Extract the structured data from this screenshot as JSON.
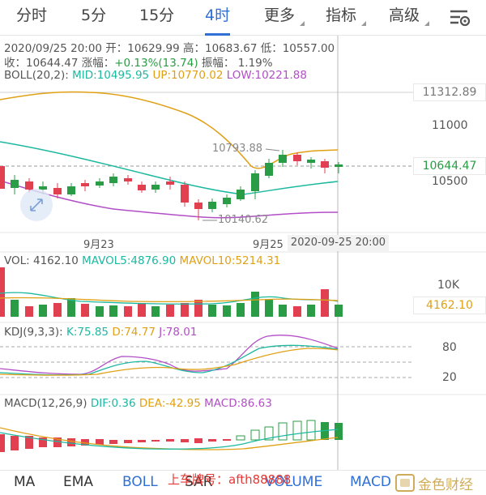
{
  "tabs": [
    {
      "label": "分时",
      "dropdown": false,
      "active": false
    },
    {
      "label": "5分",
      "dropdown": false,
      "active": false
    },
    {
      "label": "15分",
      "dropdown": false,
      "active": false
    },
    {
      "label": "4时",
      "dropdown": false,
      "active": true
    },
    {
      "label": "更多",
      "dropdown": true,
      "active": false
    },
    {
      "label": "指标",
      "dropdown": true,
      "active": false
    },
    {
      "label": "高级",
      "dropdown": true,
      "active": false
    }
  ],
  "settings_icon": "chart-settings-icon",
  "info": {
    "line1": "2020/09/25 20:00 开：10629.99 高：10683.67 低：10557.00",
    "line2_prefix": "收：10644.47 涨幅：",
    "line2_change": "+0.13%(13.74)",
    "line2_suffix": " 振幅： 1.19%"
  },
  "boll": {
    "name": "BOLL(20,2):",
    "mid": "MID:10495.95",
    "up": "UP:10770.02",
    "low": "LOW:10221.88"
  },
  "price_axis": {
    "top": "11312.89",
    "tick1": "11000",
    "current": "10644.47",
    "tick2": "10500"
  },
  "annotations": {
    "high": "10793.88",
    "low": "10140.62"
  },
  "x_labels": [
    "9月23",
    "9月25"
  ],
  "crosshair_time": "2020-09-25 20:00",
  "vol": {
    "name": "VOL: 4162.10",
    "mavol5": "MAVOL5:4876.90",
    "mavol10": "MAVOL10:5214.31",
    "tick": "10K",
    "current": "4162.10"
  },
  "kdj": {
    "name": "KDJ(9,3,3):",
    "k": "K:75.85",
    "d": "D:74.77",
    "j": "J:78.01",
    "tick_high": "80",
    "tick_low": "20"
  },
  "macd": {
    "name": "MACD(12,26,9)",
    "dif": "DIF:0.36",
    "dea": "DEA:-42.95",
    "macd": "MACD:86.63"
  },
  "bottom_tabs": [
    "MA",
    "EMA",
    "BOLL",
    "SAR",
    "VOLUME",
    "MACD"
  ],
  "watermark": "上车牌号：afth88888",
  "logo_text": "金色财经",
  "colors": {
    "accent": "#2f6fd6",
    "rise": "#2a9c45",
    "fall": "#e0404f",
    "mid_line": "#1db8a0",
    "up_line": "#e0a015",
    "low_line": "#b24ec6"
  }
}
